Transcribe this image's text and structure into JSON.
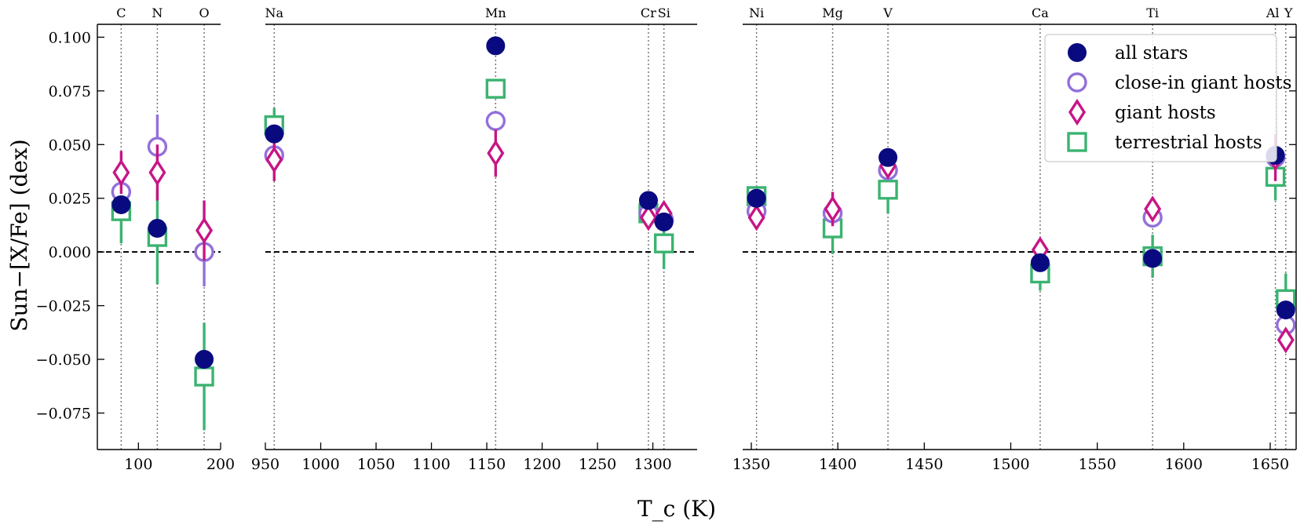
{
  "chart_data": {
    "type": "scatter",
    "title": "",
    "xlabel": "T_c (K)",
    "ylabel": "Sun−[X/Fe] (dex)",
    "ylim": [
      -0.092,
      0.106
    ],
    "yticks": [
      0.1,
      0.075,
      0.05,
      0.025,
      0.0,
      -0.025,
      -0.05,
      -0.075
    ],
    "ytick_labels": [
      "0.100",
      "0.075",
      "0.050",
      "0.025",
      "0.000",
      "−0.025",
      "−0.050",
      "−0.075"
    ],
    "reference_line_y": 0.0,
    "panels": [
      {
        "xlim": [
          50,
          200
        ],
        "xticks": [
          100,
          200
        ],
        "xtick_labels": [
          "100",
          "200"
        ],
        "elements": [
          {
            "name": "C",
            "tc": 79
          },
          {
            "name": "N",
            "tc": 123
          },
          {
            "name": "O",
            "tc": 180
          }
        ]
      },
      {
        "xlim": [
          950,
          1340
        ],
        "xticks": [
          950,
          1000,
          1050,
          1100,
          1150,
          1200,
          1250,
          1300
        ],
        "xtick_labels": [
          "950",
          "1000",
          "1050",
          "1100",
          "1150",
          "1200",
          "1250",
          "1300"
        ],
        "elements": [
          {
            "name": "Na",
            "tc": 958
          },
          {
            "name": "Mn",
            "tc": 1158
          },
          {
            "name": "Cr",
            "tc": 1296
          },
          {
            "name": "Si",
            "tc": 1310
          }
        ]
      },
      {
        "xlim": [
          1345,
          1665
        ],
        "xticks": [
          1350,
          1400,
          1450,
          1500,
          1550,
          1600,
          1650
        ],
        "xtick_labels": [
          "1350",
          "1400",
          "1450",
          "1500",
          "1550",
          "1600",
          "1650"
        ],
        "elements": [
          {
            "name": "Ni",
            "tc": 1353
          },
          {
            "name": "Mg",
            "tc": 1397
          },
          {
            "name": "V",
            "tc": 1429
          },
          {
            "name": "Ca",
            "tc": 1517
          },
          {
            "name": "Ti",
            "tc": 1582
          },
          {
            "name": "Al",
            "tc": 1653
          },
          {
            "name": "Y",
            "tc": 1659
          }
        ]
      }
    ],
    "series": [
      {
        "name": "all stars",
        "marker": "filled-circle",
        "color": "#0a0a80",
        "points": [
          {
            "element": "C",
            "tc": 79,
            "y": 0.022,
            "err": 0.0
          },
          {
            "element": "N",
            "tc": 123,
            "y": 0.011,
            "err": 0.0
          },
          {
            "element": "O",
            "tc": 180,
            "y": -0.05,
            "err": 0.0
          },
          {
            "element": "Na",
            "tc": 958,
            "y": 0.055,
            "err": 0.0
          },
          {
            "element": "Mn",
            "tc": 1158,
            "y": 0.096,
            "err": 0.0
          },
          {
            "element": "Cr",
            "tc": 1296,
            "y": 0.024,
            "err": 0.0
          },
          {
            "element": "Si",
            "tc": 1310,
            "y": 0.014,
            "err": 0.0
          },
          {
            "element": "Ni",
            "tc": 1353,
            "y": 0.025,
            "err": 0.0
          },
          {
            "element": "V",
            "tc": 1429,
            "y": 0.044,
            "err": 0.003
          },
          {
            "element": "Ca",
            "tc": 1517,
            "y": -0.005,
            "err": 0.0
          },
          {
            "element": "Ti",
            "tc": 1582,
            "y": -0.003,
            "err": 0.0
          },
          {
            "element": "Al",
            "tc": 1653,
            "y": 0.045,
            "err": 0.0
          },
          {
            "element": "Y",
            "tc": 1659,
            "y": -0.027,
            "err": 0.0
          }
        ]
      },
      {
        "name": "close-in giant hosts",
        "marker": "open-circle",
        "color": "#9370db",
        "points": [
          {
            "element": "C",
            "tc": 79,
            "y": 0.028,
            "err": 0.0
          },
          {
            "element": "N",
            "tc": 123,
            "y": 0.049,
            "err": 0.015
          },
          {
            "element": "O",
            "tc": 180,
            "y": 0.0,
            "err": 0.016
          },
          {
            "element": "Na",
            "tc": 958,
            "y": 0.045,
            "err": 0.0
          },
          {
            "element": "Mn",
            "tc": 1158,
            "y": 0.061,
            "err": 0.0
          },
          {
            "element": "Cr",
            "tc": 1296,
            "y": 0.018,
            "err": 0.0
          },
          {
            "element": "Si",
            "tc": 1310,
            "y": 0.015,
            "err": 0.0
          },
          {
            "element": "Ni",
            "tc": 1353,
            "y": 0.019,
            "err": 0.0
          },
          {
            "element": "Mg",
            "tc": 1397,
            "y": 0.018,
            "err": 0.0
          },
          {
            "element": "V",
            "tc": 1429,
            "y": 0.038,
            "err": 0.0
          },
          {
            "element": "Ti",
            "tc": 1582,
            "y": 0.016,
            "err": 0.0
          },
          {
            "element": "Al",
            "tc": 1653,
            "y": 0.044,
            "err": 0.0
          },
          {
            "element": "Y",
            "tc": 1659,
            "y": -0.034,
            "err": 0.0
          }
        ]
      },
      {
        "name": "giant hosts",
        "marker": "open-diamond",
        "color": "#c71585",
        "points": [
          {
            "element": "C",
            "tc": 79,
            "y": 0.037,
            "err": 0.01
          },
          {
            "element": "N",
            "tc": 123,
            "y": 0.037,
            "err": 0.013
          },
          {
            "element": "O",
            "tc": 180,
            "y": 0.01,
            "err": 0.014
          },
          {
            "element": "Na",
            "tc": 958,
            "y": 0.043,
            "err": 0.01
          },
          {
            "element": "Mn",
            "tc": 1158,
            "y": 0.046,
            "err": 0.011
          },
          {
            "element": "Cr",
            "tc": 1296,
            "y": 0.016,
            "err": 0.0
          },
          {
            "element": "Si",
            "tc": 1310,
            "y": 0.018,
            "err": 0.0
          },
          {
            "element": "Ni",
            "tc": 1353,
            "y": 0.016,
            "err": 0.0
          },
          {
            "element": "Mg",
            "tc": 1397,
            "y": 0.02,
            "err": 0.008
          },
          {
            "element": "V",
            "tc": 1429,
            "y": 0.04,
            "err": 0.0
          },
          {
            "element": "Ca",
            "tc": 1517,
            "y": 0.001,
            "err": 0.0
          },
          {
            "element": "Ti",
            "tc": 1582,
            "y": 0.02,
            "err": 0.0
          },
          {
            "element": "Al",
            "tc": 1653,
            "y": 0.044,
            "err": 0.011
          },
          {
            "element": "Y",
            "tc": 1659,
            "y": -0.041,
            "err": 0.0
          }
        ]
      },
      {
        "name": "terrestrial hosts",
        "marker": "open-square",
        "color": "#3cb371",
        "points": [
          {
            "element": "C",
            "tc": 79,
            "y": 0.019,
            "err": 0.015
          },
          {
            "element": "N",
            "tc": 123,
            "y": 0.007,
            "err": 0.022
          },
          {
            "element": "O",
            "tc": 180,
            "y": -0.058,
            "err": 0.025
          },
          {
            "element": "Na",
            "tc": 958,
            "y": 0.059,
            "err": 0.008
          },
          {
            "element": "Mn",
            "tc": 1158,
            "y": 0.076,
            "err": 0.0
          },
          {
            "element": "Cr",
            "tc": 1296,
            "y": 0.018,
            "err": 0.0
          },
          {
            "element": "Si",
            "tc": 1310,
            "y": 0.004,
            "err": 0.012
          },
          {
            "element": "Ni",
            "tc": 1353,
            "y": 0.026,
            "err": 0.0
          },
          {
            "element": "Mg",
            "tc": 1397,
            "y": 0.011,
            "err": 0.012
          },
          {
            "element": "V",
            "tc": 1429,
            "y": 0.029,
            "err": 0.011
          },
          {
            "element": "Ca",
            "tc": 1517,
            "y": -0.01,
            "err": 0.008
          },
          {
            "element": "Ti",
            "tc": 1582,
            "y": -0.002,
            "err": 0.01
          },
          {
            "element": "Al",
            "tc": 1653,
            "y": 0.035,
            "err": 0.011
          },
          {
            "element": "Y",
            "tc": 1659,
            "y": -0.022,
            "err": 0.012
          }
        ]
      }
    ],
    "legend": {
      "position": "top-right",
      "entries": [
        "all stars",
        "close-in giant hosts",
        "giant hosts",
        "terrestrial hosts"
      ]
    }
  }
}
